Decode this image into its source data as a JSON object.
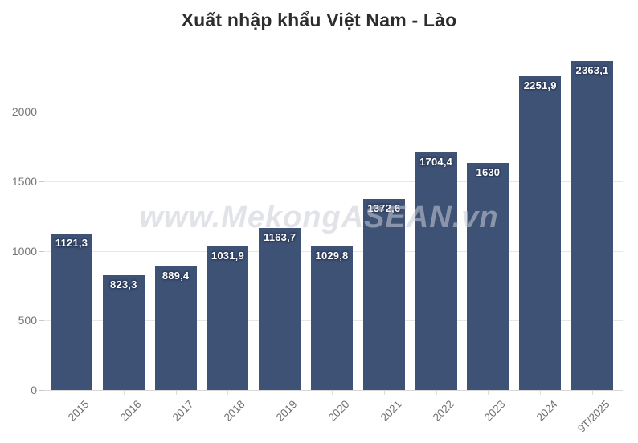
{
  "chart_data": {
    "type": "bar",
    "title": "Xuất nhập khẩu Việt Nam - Lào",
    "categories": [
      "2015",
      "2016",
      "2017",
      "2018",
      "2019",
      "2020",
      "2021",
      "2022",
      "2023",
      "2024",
      "9T/2025"
    ],
    "values": [
      1121.3,
      823.3,
      889.4,
      1031.9,
      1163.7,
      1029.8,
      1372.6,
      1704.4,
      1630,
      2251.9,
      2363.1
    ],
    "value_labels": [
      "1121,3",
      "823,3",
      "889,4",
      "1031,9",
      "1163,7",
      "1029,8",
      "1372,6",
      "1704,4",
      "1630",
      "2251,9",
      "2363,1"
    ],
    "xlabel": "",
    "ylabel": "",
    "yticks": [
      0,
      500,
      1000,
      1500,
      2000
    ],
    "ylim": [
      0,
      2400
    ],
    "grid": true,
    "legend_position": "none",
    "bar_color": "#3e5276",
    "value_label_color": "#ffffff",
    "axis_text_color": "#757575",
    "gridline_color": "#e8e8e8",
    "title_color": "#2d2d2d"
  },
  "watermark": {
    "text": "www.MekongASEAN.vn",
    "color": "#c9cdd6"
  }
}
